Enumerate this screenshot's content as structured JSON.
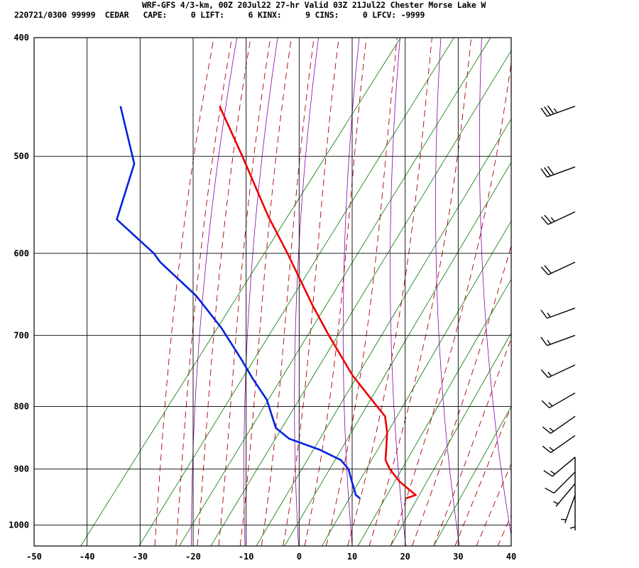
{
  "header": {
    "title": "WRF-GFS 4/3-km, 00Z 20Jul22 27-hr Valid 03Z 21Jul22 Chester Morse Lake W",
    "stats": "220721/0300 99999  CEDAR   CAPE:     0 LIFT:     6 KINX:     9 CINS:     0 LFCV: -9999"
  },
  "colors": {
    "temperature": "#ee0000",
    "dewpoint": "#0022dd",
    "dry_adiabat": "#8800aa",
    "moist_adiabat": "#aa0000",
    "mixing_ratio": "#007700",
    "grid": "#000000"
  },
  "chart_data": {
    "type": "line",
    "title": "",
    "xlabel": "",
    "ylabel": "",
    "x_scale": "skew-T temperature (C)",
    "y_scale": "log pressure (mb)",
    "xlim": [
      -50,
      40
    ],
    "ylim": [
      1040,
      400
    ],
    "x_ticks": [
      -50,
      -40,
      -30,
      -20,
      -10,
      0,
      10,
      20,
      30,
      40
    ],
    "y_ticks": [
      400,
      500,
      600,
      700,
      800,
      900,
      1000
    ],
    "grid": true,
    "series": [
      {
        "name": "",
        "kind": "temperature",
        "points": [
          {
            "p": 951,
            "t": 20.1
          },
          {
            "p": 945,
            "t": 22.0
          },
          {
            "p": 922,
            "t": 19.0
          },
          {
            "p": 900,
            "t": 17.1
          },
          {
            "p": 885,
            "t": 16.3
          },
          {
            "p": 870,
            "t": 16.4
          },
          {
            "p": 840,
            "t": 16.6
          },
          {
            "p": 815,
            "t": 16.2
          },
          {
            "p": 800,
            "t": 14.7
          },
          {
            "p": 755,
            "t": 10.1
          },
          {
            "p": 700,
            "t": 5.6
          },
          {
            "p": 660,
            "t": 2.4
          },
          {
            "p": 600,
            "t": -2.2
          },
          {
            "p": 560,
            "t": -5.8
          },
          {
            "p": 500,
            "t": -10.7
          },
          {
            "p": 455,
            "t": -15.0
          }
        ]
      },
      {
        "name": "",
        "kind": "dewpoint",
        "points": [
          {
            "p": 951,
            "t": 11.5
          },
          {
            "p": 945,
            "t": 10.7
          },
          {
            "p": 920,
            "t": 9.9
          },
          {
            "p": 900,
            "t": 9.3
          },
          {
            "p": 885,
            "t": 7.9
          },
          {
            "p": 868,
            "t": 3.9
          },
          {
            "p": 850,
            "t": -1.9
          },
          {
            "p": 833,
            "t": -4.4
          },
          {
            "p": 790,
            "t": -6.1
          },
          {
            "p": 760,
            "t": -8.7
          },
          {
            "p": 730,
            "t": -11.1
          },
          {
            "p": 690,
            "t": -14.7
          },
          {
            "p": 650,
            "t": -19.4
          },
          {
            "p": 610,
            "t": -26.2
          },
          {
            "p": 600,
            "t": -27.4
          },
          {
            "p": 563,
            "t": -34.4
          },
          {
            "p": 507,
            "t": -31.1
          },
          {
            "p": 455,
            "t": -33.7
          }
        ]
      }
    ],
    "wind_barbs": [
      {
        "p": 455,
        "dir": 250,
        "spd": 35
      },
      {
        "p": 510,
        "dir": 250,
        "spd": 30
      },
      {
        "p": 555,
        "dir": 245,
        "spd": 25
      },
      {
        "p": 610,
        "dir": 245,
        "spd": 20
      },
      {
        "p": 665,
        "dir": 250,
        "spd": 15
      },
      {
        "p": 700,
        "dir": 250,
        "spd": 15
      },
      {
        "p": 740,
        "dir": 245,
        "spd": 15
      },
      {
        "p": 780,
        "dir": 240,
        "spd": 15
      },
      {
        "p": 815,
        "dir": 235,
        "spd": 15
      },
      {
        "p": 845,
        "dir": 235,
        "spd": 15
      },
      {
        "p": 880,
        "dir": 230,
        "spd": 15
      },
      {
        "p": 905,
        "dir": 225,
        "spd": 10
      },
      {
        "p": 925,
        "dir": 220,
        "spd": 5
      },
      {
        "p": 945,
        "dir": 200,
        "spd": 5
      },
      {
        "p": 955,
        "dir": 180,
        "spd": 5
      }
    ]
  }
}
